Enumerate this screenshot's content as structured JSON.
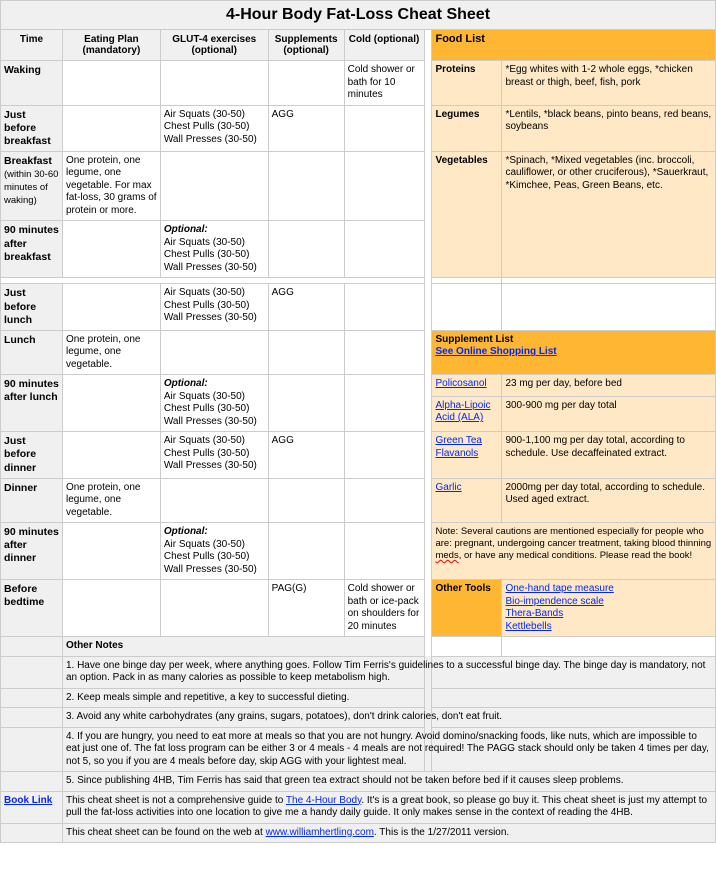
{
  "title": "4-Hour Body Fat-Loss Cheat Sheet",
  "headers": {
    "time": "Time",
    "eating": "Eating Plan (mandatory)",
    "glut4": "GLUT-4 exercises (optional)",
    "supplements": "Supplements (optional)",
    "cold": "Cold (optional)",
    "foodlist": "Food List"
  },
  "glut_standard": "Air Squats (30-50)\nChest Pulls (30-50)\nWall Presses (30-50)",
  "optional_label": "Optional:",
  "agg": "AGG",
  "pagg": "PAG(G)",
  "rows": {
    "waking": {
      "label": "Waking",
      "cold": "Cold shower or bath for 10 minutes"
    },
    "jbb": {
      "label": "Just before breakfast"
    },
    "breakfast": {
      "label": "Breakfast",
      "sub": "(within 30-60 minutes of waking)",
      "eat": "One protein, one legume, one vegetable. For max fat-loss, 30 grams of protein or more."
    },
    "ab90": {
      "label": "90 minutes after breakfast"
    },
    "jbl": {
      "label": "Just before lunch"
    },
    "lunch": {
      "label": "Lunch",
      "eat": "One protein, one legume, one vegetable."
    },
    "al90": {
      "label": "90 minutes after lunch"
    },
    "jbd": {
      "label": "Just before dinner"
    },
    "dinner": {
      "label": "Dinner",
      "eat": "One protein, one legume, one vegetable."
    },
    "ad90": {
      "label": "90 minutes after dinner"
    },
    "bed": {
      "label": "Before bedtime",
      "cold": "Cold shower or bath or ice-pack on shoulders for 20 minutes"
    }
  },
  "foods": {
    "proteins": {
      "cat": "Proteins",
      "det": "*Egg whites with 1-2 whole eggs, *chicken breast or thigh, beef, fish, pork"
    },
    "legumes": {
      "cat": "Legumes",
      "det": "*Lentils, *black beans, pinto beans, red beans, soybeans"
    },
    "veg": {
      "cat": "Vegetables",
      "det": "*Spinach, *Mixed vegetables (inc. broccoli, cauliflower, or other cruciferous), *Sauerkraut, *Kimchee, Peas, Green Beans, etc."
    }
  },
  "supp_header": "Supplement List",
  "supp_link": "See Online Shopping List",
  "supps": {
    "poli": {
      "name": "Policosanol",
      "dose": "23 mg per day, before bed"
    },
    "ala": {
      "name": "Alpha-Lipoic Acid (ALA)",
      "dose": "300-900 mg per day total"
    },
    "green": {
      "name": "Green Tea Flavanols",
      "dose": "900-1,100 mg per day total, according to schedule. Use decaffeinated extract."
    },
    "garlic": {
      "name": "Garlic",
      "dose": "2000mg per day total, according to schedule. Used aged extract."
    }
  },
  "supp_note_a": "Note: Several cautions are mentioned especially for people who are: pregnant, undergoing cancer treatment, taking blood thinning ",
  "supp_note_m": "meds",
  "supp_note_b": ", or have any medical conditions. Please read the book!",
  "tools_h": "Other Tools",
  "tools": {
    "t1": "One-hand tape measure",
    "t2": "Bio-impendence scale",
    "t3": "Thera-Bands",
    "t4": "Kettlebells"
  },
  "other_notes_h": "Other Notes",
  "notes": {
    "n1": "1. Have one binge day per week, where anything goes. Follow Tim Ferris's guidelines to a successful binge day. The binge day is mandatory, not an option. Pack in as many calories as possible to keep metabolism high.",
    "n2": "2. Keep meals simple and repetitive, a key to successful dieting.",
    "n3": "3. Avoid any white carbohydrates (any grains, sugars, potatoes), don't drink calories, don't eat fruit.",
    "n4": "4. If you are hungry, you need to eat more at meals so that you are not hungry. Avoid domino/snacking foods, like nuts, which are impossible to eat just one of. The fat loss program can be either 3 or 4 meals - 4 meals are not required! The PAGG stack should only be taken 4 times per day, not 5, so you if you are 4 meals before day, skip AGG with your lightest meal.",
    "n5": "5. Since publishing 4HB, Tim Ferris has said that green tea extract should not be taken before bed if it causes sleep problems."
  },
  "book_link_label": "Book Link",
  "book_text_a": "This cheat sheet is not a comprehensive guide to ",
  "book_link": "The 4-Hour Body",
  "book_text_b": ". It's is a great book, so please go buy it. This cheat sheet is just my attempt to pull the fat-loss activities into one location to give me a handy daily guide. It only makes sense in the context of reading the 4HB.",
  "web_text_a": "This cheat sheet can be found on the web at ",
  "web_link": "www.williamhertling.com",
  "web_text_b": ". This is the 1/27/2011 version.",
  "colors": {
    "header_bg": "#f0f0f0",
    "border": "#cccccc",
    "orange_strong": "#ffb733",
    "orange_light": "#ffe8c6",
    "link": "#0026ff"
  }
}
